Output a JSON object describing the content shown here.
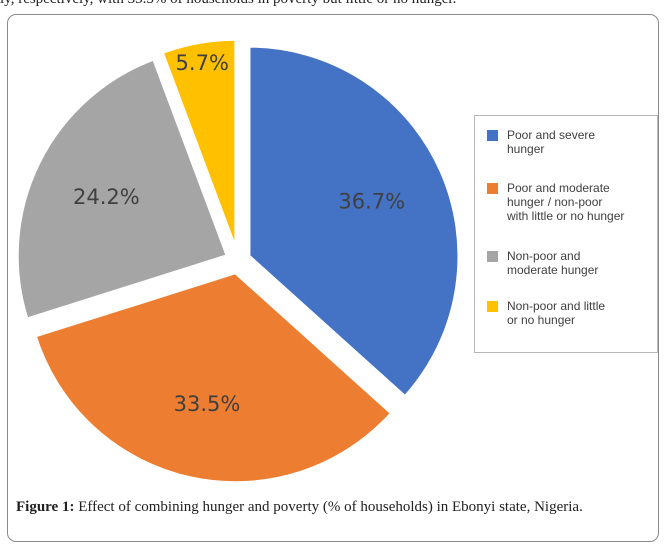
{
  "top_text": "ly, respectively, with 33.5% of households in poverty but little or no hunger.",
  "chart_data": {
    "type": "pie",
    "slices": [
      {
        "label": "Poor and severe hunger",
        "value": 36.7,
        "label_text": "36.7%",
        "color": "#4472c4"
      },
      {
        "label": "Poor and moderate hunger / non-poor with little or no hunger",
        "value": 33.5,
        "label_text": "33.5%",
        "color": "#ed7d31"
      },
      {
        "label": "Non-poor and moderate hunger",
        "value": 24.2,
        "label_text": "24.2%",
        "color": "#a5a5a5"
      },
      {
        "label": "Non-poor and little or no hunger",
        "value": 5.7,
        "label_text": "5.7%",
        "color": "#ffc000"
      }
    ],
    "legend": {
      "position": "right",
      "items": [
        {
          "lines": [
            "Poor and severe",
            "hunger"
          ],
          "color": "#4472c4"
        },
        {
          "lines": [
            "Poor and moderate",
            "hunger / non-poor",
            "with little or no hunger"
          ],
          "color": "#ed7d31"
        },
        {
          "lines": [
            "Non-poor and",
            "moderate hunger"
          ],
          "color": "#a5a5a5"
        },
        {
          "lines": [
            "Non-poor and little",
            "or no hunger"
          ],
          "color": "#ffc000"
        }
      ]
    },
    "exploded": true
  },
  "caption": {
    "label": "Figure 1:",
    "text": " Effect of combining hunger and poverty (% of households) in Ebonyi state, Nigeria."
  }
}
